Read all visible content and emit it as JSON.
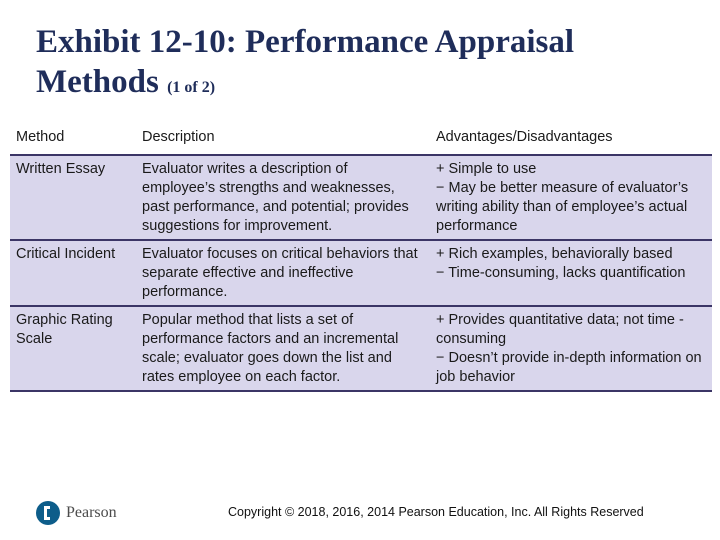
{
  "slide": {
    "title_main": "Exhibit 12-10: Performance Appraisal Methods",
    "title_sub": "(1 of 2)"
  },
  "table": {
    "headers": [
      "Method",
      "Description",
      "Advantages/Disadvantages"
    ],
    "rows": [
      {
        "method": "Written Essay",
        "description": "Evaluator writes a description of employee’s strengths and weaknesses, past performance, and potential; provides suggestions for improvement.",
        "adv_1": "+ Simple to use",
        "adv_2": "− May be better measure of evaluator’s writing ability than of employee’s actual performance"
      },
      {
        "method": "Critical Incident",
        "description": "Evaluator focuses on critical behaviors that separate effective and ineffective performance.",
        "adv_1": "+ Rich examples, behaviorally based",
        "adv_2": "− Time-consuming, lacks quantification"
      },
      {
        "method": "Graphic Rating Scale",
        "description": "Popular method that lists a set of performance factors and an incremental scale; evaluator goes down the list and rates employee on each factor.",
        "adv_1": "+ Provides quantitative data; not time -consuming",
        "adv_2": "− Doesn’t provide in-depth information on job behavior"
      }
    ]
  },
  "footer": {
    "copyright": "Copyright © 2018, 2016, 2014 Pearson Education, Inc. All Rights Reserved",
    "logo_text": "Pearson"
  }
}
